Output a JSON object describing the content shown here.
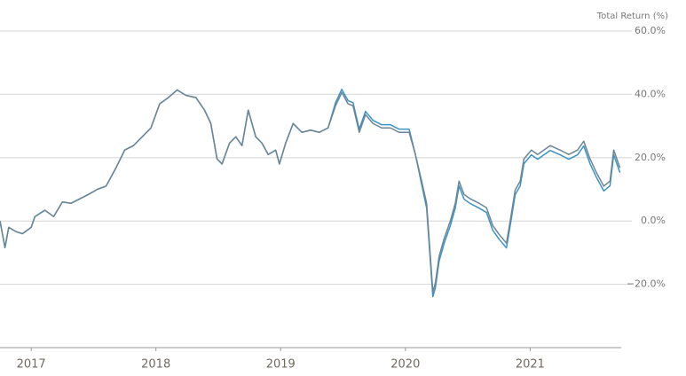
{
  "chart_data": {
    "type": "line",
    "y_axis_label": "Total Return (%)",
    "xlim": [
      2016.75,
      2021.73
    ],
    "xticks": [
      2017,
      2018,
      2019,
      2020,
      2021
    ],
    "ylim": [
      -40,
      60
    ],
    "yticks": [
      {
        "value": 60,
        "label": "60.0%"
      },
      {
        "value": 40,
        "label": "40.0%"
      },
      {
        "value": 20,
        "label": "20.0%"
      },
      {
        "value": 0,
        "label": "0.0%"
      },
      {
        "value": -20,
        "label": "−20.0%"
      }
    ],
    "grid": true,
    "x": [
      2016.75,
      2016.79,
      2016.82,
      2016.88,
      2016.93,
      2017.0,
      2017.03,
      2017.11,
      2017.18,
      2017.25,
      2017.32,
      2017.39,
      2017.46,
      2017.53,
      2017.6,
      2017.68,
      2017.75,
      2017.82,
      2017.89,
      2017.96,
      2018.03,
      2018.1,
      2018.17,
      2018.24,
      2018.32,
      2018.39,
      2018.44,
      2018.49,
      2018.53,
      2018.59,
      2018.64,
      2018.69,
      2018.74,
      2018.8,
      2018.85,
      2018.9,
      2018.96,
      2018.99,
      2019.04,
      2019.1,
      2019.17,
      2019.24,
      2019.31,
      2019.38,
      2019.44,
      2019.49,
      2019.54,
      2019.58,
      2019.63,
      2019.68,
      2019.74,
      2019.81,
      2019.88,
      2019.95,
      2020.03,
      2020.08,
      2020.13,
      2020.17,
      2020.2,
      2020.22,
      2020.24,
      2020.27,
      2020.31,
      2020.36,
      2020.4,
      2020.43,
      2020.47,
      2020.52,
      2020.59,
      2020.65,
      2020.7,
      2020.75,
      2020.81,
      2020.84,
      2020.88,
      2020.92,
      2020.95,
      2021.01,
      2021.06,
      2021.11,
      2021.16,
      2021.24,
      2021.31,
      2021.38,
      2021.43,
      2021.48,
      2021.53,
      2021.59,
      2021.64,
      2021.67,
      2021.72
    ],
    "series": [
      {
        "color": "#3a93c6",
        "values": [
          0,
          -8.4,
          -2,
          -3.4,
          -4,
          -2,
          1.4,
          3.4,
          1.4,
          6,
          5.6,
          7,
          8.4,
          10,
          11,
          16.8,
          22.4,
          23.8,
          26.6,
          29.4,
          37,
          39,
          41.4,
          39.7,
          39,
          35,
          30.8,
          19.6,
          18,
          24.6,
          26.6,
          23.8,
          35,
          26.6,
          24.6,
          21,
          22.4,
          18,
          24.6,
          30.8,
          28,
          28.7,
          28,
          29.4,
          37.4,
          41.6,
          38,
          37.4,
          29,
          34.6,
          31.8,
          30.4,
          30.4,
          29,
          29,
          21,
          11.6,
          4.1,
          -12.7,
          -23.9,
          -21.1,
          -12.7,
          -7.1,
          -1.5,
          4.1,
          11.1,
          6.9,
          5.5,
          4.1,
          2.7,
          -2.9,
          -5.7,
          -8.5,
          -1.5,
          8.3,
          11.1,
          18.1,
          20.9,
          19.5,
          20.9,
          22.3,
          20.9,
          19.5,
          20.9,
          23.7,
          18.1,
          13.9,
          9.5,
          11.1,
          20.9,
          15.3
        ]
      },
      {
        "color": "#6c8594",
        "values": [
          0,
          -8.4,
          -2,
          -3.4,
          -4,
          -2,
          1.4,
          3.4,
          1.4,
          6,
          5.6,
          7,
          8.4,
          10,
          11,
          16.8,
          22.4,
          23.8,
          26.6,
          29.4,
          37,
          39,
          41.4,
          39.7,
          39,
          35,
          30.8,
          19.6,
          18,
          24.6,
          26.6,
          23.8,
          35,
          26.6,
          24.6,
          21,
          22.4,
          18,
          24.6,
          30.8,
          28,
          28.7,
          28,
          29.4,
          36.4,
          40.6,
          37,
          36.4,
          28,
          33.6,
          30.8,
          29.4,
          29.4,
          28,
          28,
          21,
          12.6,
          5.6,
          -11.2,
          -22.4,
          -19.6,
          -11.2,
          -5.6,
          0,
          5.6,
          12.6,
          8.4,
          7,
          5.6,
          4.2,
          -1.4,
          -4.2,
          -7,
          0,
          9.8,
          12.6,
          19.6,
          22.4,
          21,
          22.4,
          23.8,
          22.4,
          21,
          22.4,
          25.2,
          19.6,
          15.4,
          11,
          12.6,
          22.4,
          16.8
        ]
      }
    ]
  }
}
